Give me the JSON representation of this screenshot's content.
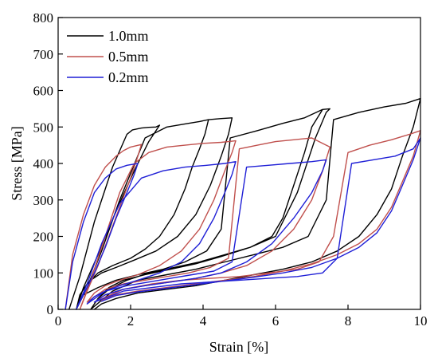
{
  "chart_data": {
    "type": "line",
    "title": "",
    "xlabel": "Strain [%]",
    "ylabel": "Stress [MPa]",
    "xlim": [
      0,
      10
    ],
    "ylim": [
      0,
      800
    ],
    "xticks": [
      "0",
      "2",
      "4",
      "6",
      "8",
      "10"
    ],
    "yticks": [
      "0",
      "100",
      "200",
      "300",
      "400",
      "500",
      "600",
      "700",
      "800"
    ],
    "grid": false,
    "legend": "top-left",
    "series": [
      {
        "name": "1.0mm",
        "color": "#000000",
        "x": [
          0.3,
          0.6,
          1.0,
          1.5,
          1.9,
          2.05,
          2.3,
          2.5,
          2.7,
          2.8,
          2.5,
          2.1,
          1.6,
          1.1,
          0.7,
          0.5,
          null,
          0.5,
          0.8,
          1.2,
          1.7,
          2.4,
          3.0,
          3.6,
          3.9,
          4.15,
          4.05,
          3.9,
          3.7,
          3.5,
          3.2,
          2.8,
          2.4,
          2.0,
          1.5,
          1.1,
          0.8,
          0.6,
          0.5,
          null,
          4.15,
          4.5,
          4.8,
          4.7,
          4.5,
          4.2,
          3.8,
          3.3,
          2.7,
          2.1,
          1.6,
          1.2,
          0.9,
          0.7,
          null,
          0.7,
          1.1,
          1.6,
          2.2,
          2.9,
          3.5,
          4.1,
          4.5,
          4.75,
          5.5,
          6.2,
          6.8,
          7.3,
          7.0,
          6.8,
          6.5,
          6.2,
          5.9,
          5.3,
          4.6,
          3.9,
          3.2,
          2.5,
          1.9,
          1.4,
          1.1,
          0.9,
          null,
          7.3,
          7.5,
          7.4,
          7.1,
          6.6,
          6.0,
          5.3,
          4.5,
          3.8,
          3.1,
          2.4,
          1.8,
          1.4,
          1.1,
          0.9,
          null,
          0.9,
          1.5,
          2.2,
          3.0,
          3.8,
          4.6,
          5.4,
          6.2,
          6.9,
          7.4,
          7.6,
          8.3,
          9.0,
          9.6,
          10.0,
          null,
          10.0,
          9.8,
          9.5,
          9.2,
          8.8,
          8.3,
          7.7,
          7.0,
          6.2,
          5.4,
          4.6,
          3.8,
          3.0,
          2.2,
          1.6,
          1.2,
          1.0
        ],
        "y": [
          0,
          90,
          240,
          390,
          480,
          492,
          497,
          499,
          500,
          505,
          460,
          380,
          270,
          150,
          60,
          0,
          null,
          0,
          60,
          160,
          300,
          470,
          500,
          510,
          515,
          520,
          480,
          440,
          390,
          330,
          260,
          200,
          165,
          140,
          120,
          100,
          70,
          40,
          0,
          null,
          520,
          523,
          525,
          480,
          420,
          340,
          260,
          200,
          160,
          135,
          115,
          100,
          80,
          40,
          null,
          40,
          60,
          80,
          95,
          110,
          130,
          160,
          220,
          470,
          490,
          510,
          525,
          548,
          500,
          430,
          340,
          250,
          200,
          170,
          150,
          130,
          115,
          100,
          80,
          55,
          30,
          0,
          null,
          548,
          550,
          540,
          470,
          320,
          200,
          170,
          145,
          125,
          110,
          95,
          80,
          60,
          30,
          0,
          null,
          0,
          50,
          80,
          95,
          110,
          130,
          150,
          170,
          200,
          300,
          520,
          540,
          555,
          565,
          578,
          null,
          578,
          500,
          420,
          330,
          260,
          200,
          160,
          130,
          110,
          95,
          80,
          65,
          55,
          45,
          30,
          15,
          0
        ]
      },
      {
        "name": "0.5mm",
        "color": "#c0504d",
        "x": [
          0.2,
          0.4,
          0.7,
          1.0,
          1.3,
          1.6,
          1.8,
          2.0,
          2.3,
          2.2,
          2.0,
          1.7,
          1.4,
          1.1,
          0.8,
          0.6,
          null,
          0.6,
          0.9,
          1.3,
          1.7,
          2.1,
          2.5,
          3.0,
          3.5,
          4.0,
          4.5,
          4.9,
          4.8,
          4.6,
          4.3,
          3.9,
          3.4,
          2.8,
          2.2,
          1.7,
          1.3,
          1.0,
          0.8,
          null,
          0.8,
          1.3,
          1.8,
          2.4,
          3.0,
          3.6,
          4.2,
          4.7,
          5.0,
          5.5,
          6.0,
          6.5,
          7.0,
          7.4,
          7.5,
          7.3,
          7.0,
          6.5,
          5.9,
          5.2,
          4.5,
          3.8,
          3.1,
          2.4,
          1.8,
          1.3,
          1.0,
          null,
          1.0,
          1.8,
          2.6,
          3.4,
          4.2,
          5.0,
          5.8,
          6.6,
          7.2,
          7.6,
          8.0,
          8.6,
          9.2,
          9.7,
          10.0,
          null,
          10.0,
          9.8,
          9.5,
          9.2,
          8.8,
          8.3,
          7.7,
          7.0,
          6.2,
          5.4,
          4.6,
          3.8,
          3.0,
          2.2,
          1.6,
          1.2
        ],
        "y": [
          0,
          150,
          260,
          340,
          390,
          420,
          435,
          445,
          452,
          420,
          360,
          280,
          200,
          120,
          50,
          0,
          null,
          0,
          80,
          200,
          320,
          400,
          430,
          445,
          450,
          455,
          458,
          462,
          430,
          380,
          300,
          220,
          160,
          120,
          95,
          80,
          65,
          45,
          20,
          null,
          20,
          55,
          70,
          80,
          90,
          100,
          115,
          140,
          440,
          450,
          460,
          465,
          470,
          450,
          445,
          380,
          300,
          220,
          160,
          120,
          100,
          85,
          75,
          65,
          55,
          40,
          20,
          null,
          20,
          55,
          70,
          80,
          85,
          90,
          100,
          110,
          130,
          200,
          430,
          450,
          465,
          480,
          490,
          null,
          490,
          420,
          350,
          280,
          220,
          180,
          150,
          125,
          105,
          90,
          80,
          70,
          60,
          50,
          40,
          25
        ]
      },
      {
        "name": "0.2mm",
        "color": "#1f1fd6",
        "x": [
          0.2,
          0.4,
          0.7,
          1.0,
          1.3,
          1.6,
          1.9,
          2.2,
          2.1,
          1.9,
          1.6,
          1.3,
          1.0,
          0.7,
          0.5,
          null,
          0.5,
          0.8,
          1.2,
          1.7,
          2.3,
          2.9,
          3.5,
          4.1,
          4.6,
          4.9,
          4.8,
          4.6,
          4.3,
          3.9,
          3.4,
          2.8,
          2.2,
          1.7,
          1.3,
          1.0,
          0.8,
          null,
          0.8,
          1.3,
          1.9,
          2.5,
          3.1,
          3.7,
          4.3,
          4.8,
          5.2,
          5.8,
          6.4,
          7.0,
          7.4,
          7.3,
          7.0,
          6.5,
          5.9,
          5.2,
          4.5,
          3.8,
          3.1,
          2.4,
          1.8,
          1.3,
          1.0,
          null,
          1.0,
          1.8,
          2.6,
          3.4,
          4.2,
          5.0,
          5.8,
          6.6,
          7.3,
          7.7,
          8.1,
          8.7,
          9.3,
          9.8,
          10.0,
          null,
          10.0,
          9.8,
          9.5,
          9.2,
          8.8,
          8.3,
          7.7,
          7.0,
          6.2,
          5.4,
          4.6,
          3.8,
          3.0,
          2.2,
          1.6,
          1.2
        ],
        "y": [
          0,
          130,
          240,
          320,
          360,
          385,
          395,
          400,
          370,
          320,
          250,
          170,
          100,
          40,
          0,
          null,
          0,
          70,
          180,
          290,
          360,
          380,
          390,
          395,
          400,
          405,
          370,
          320,
          250,
          180,
          130,
          100,
          80,
          65,
          50,
          35,
          15,
          null,
          15,
          50,
          65,
          75,
          85,
          95,
          105,
          130,
          390,
          395,
          400,
          405,
          410,
          380,
          320,
          250,
          180,
          130,
          100,
          85,
          75,
          65,
          55,
          40,
          20,
          null,
          20,
          50,
          60,
          70,
          75,
          80,
          85,
          90,
          100,
          140,
          400,
          410,
          420,
          440,
          470,
          null,
          470,
          410,
          340,
          270,
          210,
          170,
          140,
          115,
          100,
          88,
          78,
          68,
          58,
          48,
          38,
          22
        ]
      }
    ]
  }
}
